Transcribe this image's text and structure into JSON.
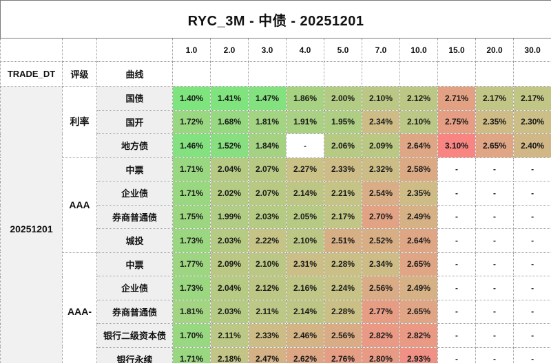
{
  "labels": {
    "trade_dt": "TRADE_DT",
    "rating": "评级",
    "curve": "曲线"
  },
  "chart_data": {
    "type": "heatmap",
    "title": "RYC_3M - 中债 - 20251201",
    "trade_date": "20251201",
    "xlabel": "",
    "ylabel": "",
    "empty_label": "-",
    "columns": [
      "1.0",
      "2.0",
      "3.0",
      "4.0",
      "5.0",
      "7.0",
      "10.0",
      "15.0",
      "20.0",
      "30.0"
    ],
    "color_scale": {
      "min_value": 1.4,
      "mid_value": 2.25,
      "max_value": 3.1,
      "min_color": "#7ee47e",
      "mid_color": "#c8c286",
      "max_color": "#f98583",
      "empty_color": "#ffffff"
    },
    "groups": [
      {
        "rating": "利率",
        "rows": [
          {
            "curve": "国债",
            "values": [
              1.4,
              1.41,
              1.47,
              1.86,
              2.0,
              2.1,
              2.12,
              2.71,
              2.17,
              2.17
            ]
          },
          {
            "curve": "国开",
            "values": [
              1.72,
              1.68,
              1.81,
              1.91,
              1.95,
              2.34,
              2.1,
              2.75,
              2.35,
              2.3
            ]
          },
          {
            "curve": "地方债",
            "values": [
              1.46,
              1.52,
              1.84,
              null,
              2.06,
              2.09,
              2.64,
              3.1,
              2.65,
              2.4
            ]
          }
        ]
      },
      {
        "rating": "AAA",
        "rows": [
          {
            "curve": "中票",
            "values": [
              1.71,
              2.04,
              2.07,
              2.27,
              2.33,
              2.32,
              2.58,
              null,
              null,
              null
            ]
          },
          {
            "curve": "企业债",
            "values": [
              1.71,
              2.02,
              2.07,
              2.14,
              2.21,
              2.54,
              2.35,
              null,
              null,
              null
            ]
          },
          {
            "curve": "券商普通债",
            "values": [
              1.75,
              1.99,
              2.03,
              2.05,
              2.17,
              2.7,
              2.49,
              null,
              null,
              null
            ]
          },
          {
            "curve": "城投",
            "values": [
              1.73,
              2.03,
              2.22,
              2.1,
              2.51,
              2.52,
              2.64,
              null,
              null,
              null
            ]
          }
        ]
      },
      {
        "rating": "AAA-",
        "rows": [
          {
            "curve": "中票",
            "values": [
              1.77,
              2.09,
              2.1,
              2.31,
              2.28,
              2.34,
              2.65,
              null,
              null,
              null
            ]
          },
          {
            "curve": "企业债",
            "values": [
              1.73,
              2.04,
              2.12,
              2.16,
              2.24,
              2.56,
              2.49,
              null,
              null,
              null
            ]
          },
          {
            "curve": "券商普通债",
            "values": [
              1.81,
              2.03,
              2.11,
              2.14,
              2.28,
              2.77,
              2.65,
              null,
              null,
              null
            ]
          },
          {
            "curve": "银行二级资本债",
            "values": [
              1.7,
              2.11,
              2.33,
              2.46,
              2.56,
              2.82,
              2.82,
              null,
              null,
              null
            ]
          },
          {
            "curve": "银行永续",
            "values": [
              1.71,
              2.18,
              2.47,
              2.62,
              2.76,
              2.8,
              2.93,
              null,
              null,
              null
            ]
          }
        ]
      }
    ]
  }
}
